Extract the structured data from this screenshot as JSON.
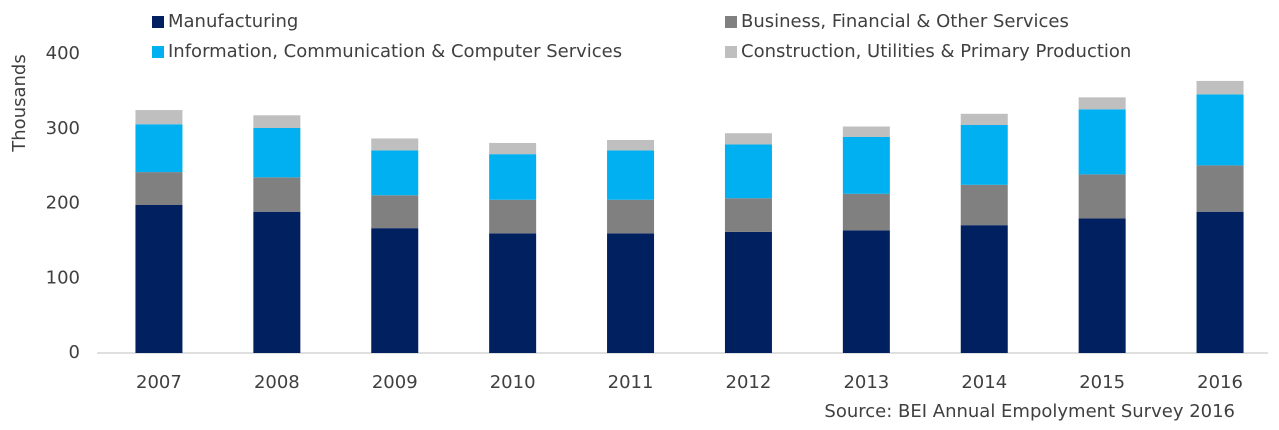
{
  "chart_data": {
    "type": "stacked_bar",
    "y_label": "Thousands",
    "source": "Source: BEI Annual Empolyment Survey 2016",
    "categories": [
      "2007",
      "2008",
      "2009",
      "2010",
      "2011",
      "2012",
      "2013",
      "2014",
      "2015",
      "2016"
    ],
    "series": [
      {
        "name": "Manufacturing",
        "color": "#002060",
        "values": [
          198,
          189,
          167,
          160,
          160,
          162,
          164,
          171,
          180,
          189
        ]
      },
      {
        "name": "Business, Financial & Other Services",
        "color": "#808080",
        "values": [
          44,
          46,
          44,
          45,
          45,
          45,
          49,
          54,
          59,
          62
        ]
      },
      {
        "name": "Information, Communication & Computer Services",
        "color": "#00b0f0",
        "values": [
          64,
          66,
          60,
          61,
          66,
          72,
          76,
          80,
          87,
          95
        ]
      },
      {
        "name": "Construction, Utilities & Primary Production",
        "color": "#bfbfbf",
        "values": [
          19,
          17,
          16,
          15,
          14,
          15,
          14,
          15,
          16,
          18
        ]
      }
    ],
    "ylim": [
      0,
      400
    ],
    "yticks": [
      0,
      100,
      200,
      300,
      400
    ],
    "grid": false
  }
}
